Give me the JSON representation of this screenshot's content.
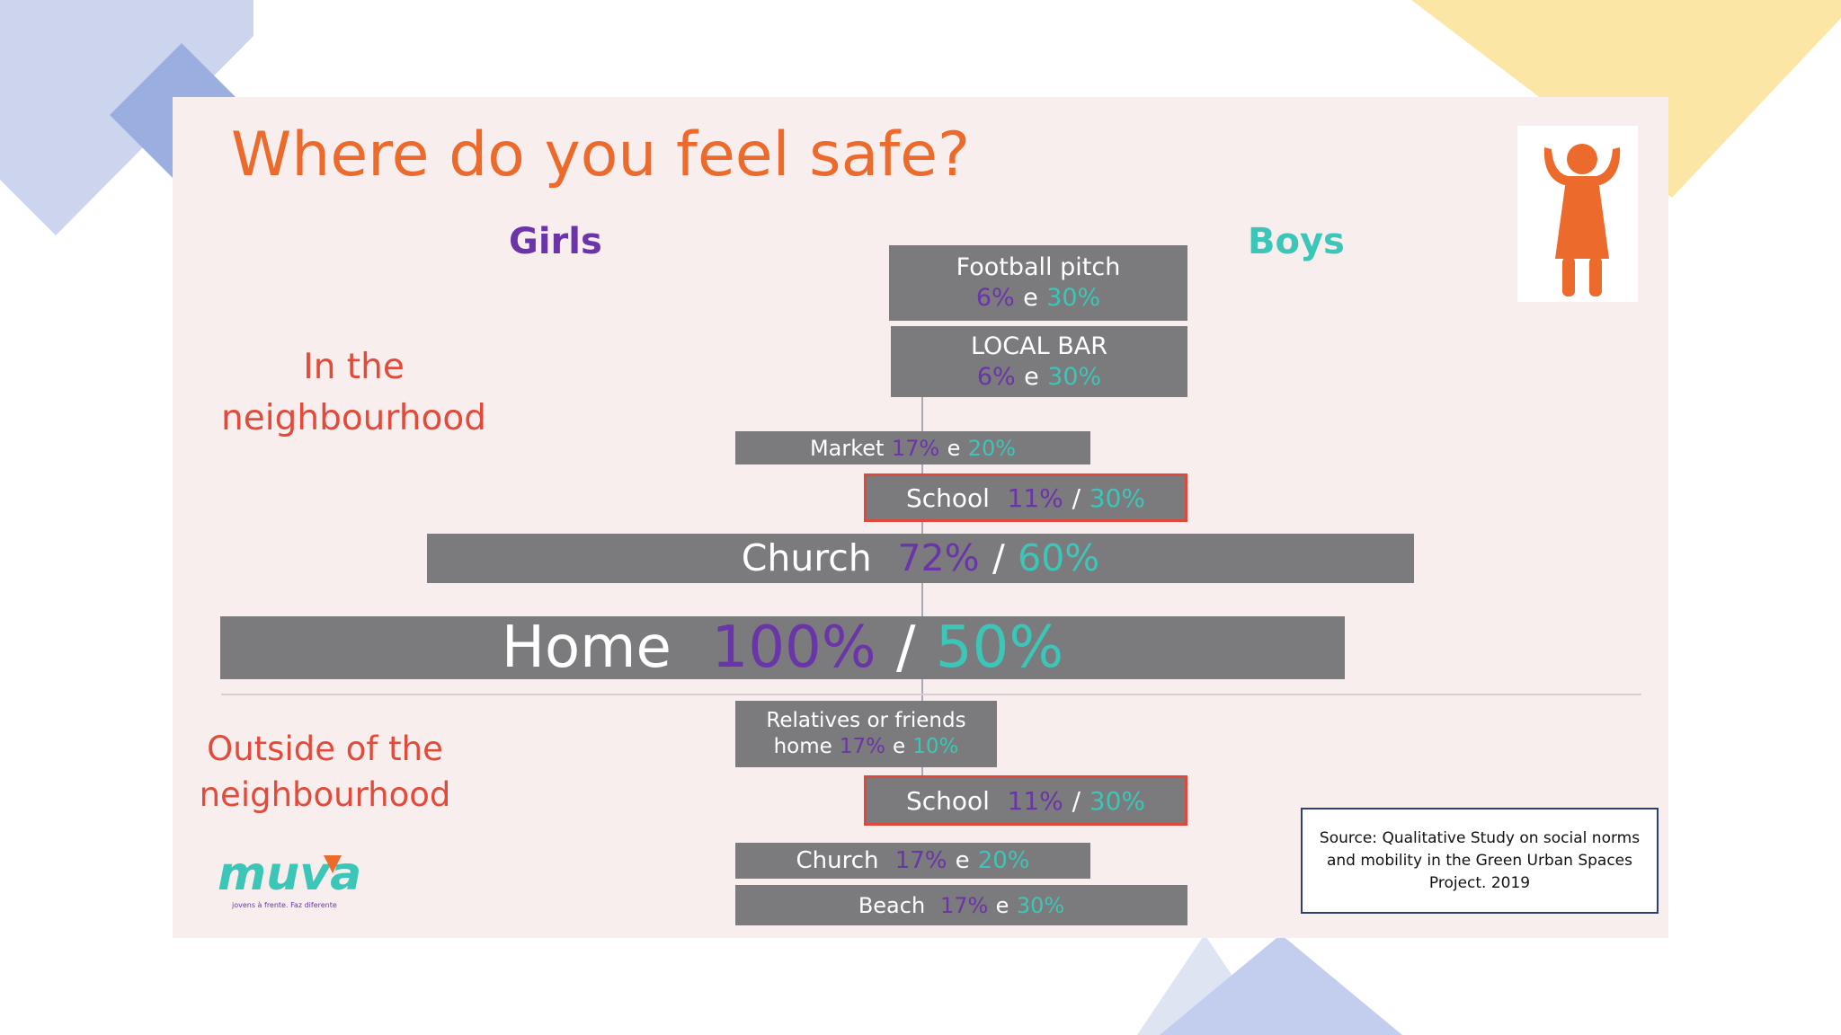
{
  "slide": {
    "title": "Where do you feel safe?",
    "girls_label": "Girls",
    "boys_label": "Boys",
    "section_in_line1": "In the",
    "section_in_line2": "neighbourhood",
    "section_out_line1": "Outside of the",
    "section_out_line2": "neighbourhood",
    "source": "Source: Qualitative Study on social norms and mobility in the Green Urban Spaces Project. 2019",
    "icon": "girl-figure-icon",
    "logo_text": "muva",
    "logo_tagline": "jovens à frente. Faz diferente"
  },
  "colors": {
    "title": "#ec6a2c",
    "girls": "#6a35a8",
    "boys": "#3cc6b8",
    "section": "#e24a3a",
    "bar": "#7b7a7c",
    "bar_border": "#e0483e"
  },
  "bars": {
    "football": {
      "label": "Football pitch",
      "girls": "6%",
      "sep": "e",
      "boys": "30%"
    },
    "localbar": {
      "label": "LOCAL BAR",
      "girls": "6%",
      "sep": "e",
      "boys": "30%"
    },
    "market": {
      "label": "Market",
      "girls": "17%",
      "sep": "e",
      "boys": "20%"
    },
    "school_in": {
      "label": "School",
      "girls": "11%",
      "sep": "/",
      "boys": "30%"
    },
    "church_in": {
      "label": "Church",
      "girls": "72%",
      "sep": "/",
      "boys": "60%"
    },
    "home": {
      "label": "Home",
      "girls": "100%",
      "sep": "/",
      "boys": "50%"
    },
    "relatives": {
      "label_line1": "Relatives or friends",
      "label_line2": "home",
      "girls": "17%",
      "sep": "e",
      "boys": "10%"
    },
    "school_out": {
      "label": "School",
      "girls": "11%",
      "sep": "/",
      "boys": "30%"
    },
    "church_out": {
      "label": "Church",
      "girls": "17%",
      "sep": "e",
      "boys": "20%"
    },
    "beach": {
      "label": "Beach",
      "girls": "17%",
      "sep": "e",
      "boys": "30%"
    }
  }
}
